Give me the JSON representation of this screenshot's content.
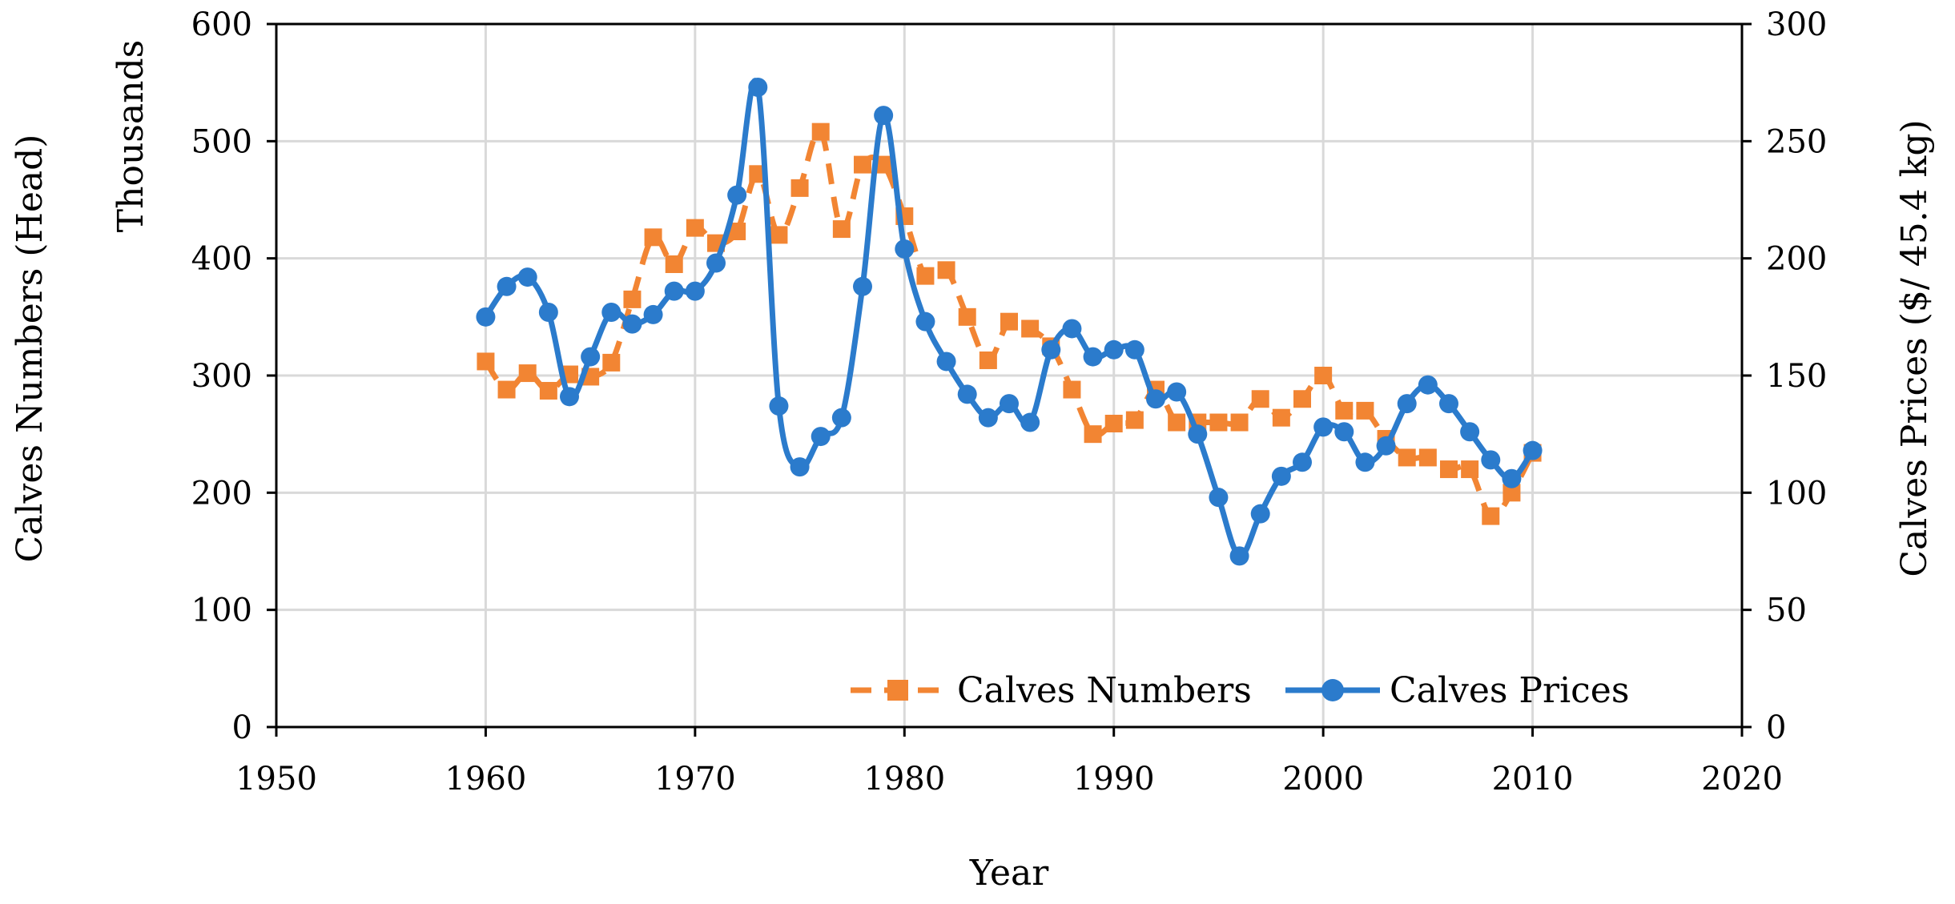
{
  "chart_data": {
    "type": "line",
    "title": "",
    "xlabel": "Year",
    "ylabel_left": "Calves Numbers (Head)",
    "ylabel_left_units": "Thousands",
    "ylabel_right": "Calves Prices ($/ 45.4 kg)",
    "xlim": [
      1950,
      2020
    ],
    "xticks": [
      1950,
      1960,
      1970,
      1980,
      1990,
      2000,
      2010,
      2020
    ],
    "ylim_left": [
      0,
      600
    ],
    "yticks_left": [
      0,
      100,
      200,
      300,
      400,
      500,
      600
    ],
    "ylim_right": [
      0,
      300
    ],
    "yticks_right": [
      0,
      50,
      100,
      150,
      200,
      250,
      300
    ],
    "grid": true,
    "legend_position": "bottom-right",
    "series": [
      {
        "name": "Calves Numbers",
        "axis": "left",
        "style": "dashed-square",
        "color": "#F28533",
        "x": [
          1960,
          1961,
          1962,
          1963,
          1964,
          1965,
          1966,
          1967,
          1968,
          1969,
          1970,
          1971,
          1972,
          1973,
          1974,
          1975,
          1976,
          1977,
          1978,
          1979,
          1980,
          1981,
          1982,
          1983,
          1984,
          1985,
          1986,
          1987,
          1988,
          1989,
          1990,
          1991,
          1992,
          1993,
          1994,
          1995,
          1996,
          1997,
          1998,
          1999,
          2000,
          2001,
          2002,
          2003,
          2004,
          2005,
          2006,
          2007,
          2008,
          2009,
          2010
        ],
        "values": [
          312,
          288,
          302,
          287,
          301,
          299,
          311,
          365,
          418,
          395,
          426,
          413,
          423,
          472,
          420,
          460,
          508,
          425,
          480,
          480,
          436,
          385,
          390,
          350,
          313,
          346,
          340,
          325,
          288,
          250,
          259,
          262,
          288,
          260,
          260,
          260,
          260,
          280,
          264,
          280,
          300,
          270,
          270,
          246,
          230,
          230,
          220,
          220,
          180,
          200,
          234
        ]
      },
      {
        "name": "Calves Prices",
        "axis": "right",
        "style": "solid-circle",
        "color": "#2B7BCC",
        "x": [
          1960,
          1961,
          1962,
          1963,
          1964,
          1965,
          1966,
          1967,
          1968,
          1969,
          1970,
          1971,
          1972,
          1973,
          1974,
          1975,
          1976,
          1977,
          1978,
          1979,
          1980,
          1981,
          1982,
          1983,
          1984,
          1985,
          1986,
          1987,
          1988,
          1989,
          1990,
          1991,
          1992,
          1993,
          1994,
          1995,
          1996,
          1997,
          1998,
          1999,
          2000,
          2001,
          2002,
          2003,
          2004,
          2005,
          2006,
          2007,
          2008,
          2009,
          2010
        ],
        "values": [
          175,
          188,
          192,
          177,
          141,
          158,
          177,
          172,
          176,
          186,
          186,
          198,
          227,
          273,
          137,
          111,
          124,
          132,
          188,
          261,
          204,
          173,
          156,
          142,
          132,
          138,
          130,
          161,
          170,
          158,
          161,
          161,
          140,
          143,
          125,
          98,
          73,
          91,
          107,
          113,
          128,
          126,
          113,
          120,
          138,
          146,
          138,
          126,
          114,
          106,
          118
        ]
      }
    ]
  }
}
